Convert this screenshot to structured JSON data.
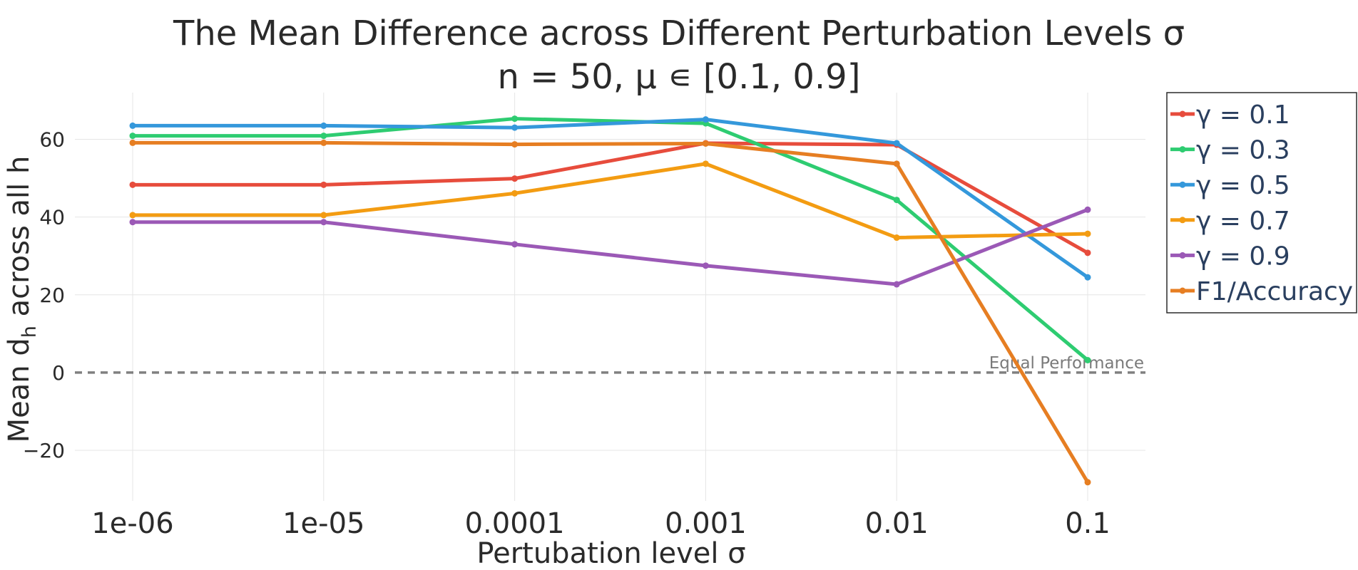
{
  "chart_data": {
    "type": "line",
    "title": "The Mean Difference across Different Perturbation Levels σ",
    "subtitle": "n = 50, μ ∊ [0.1, 0.9]",
    "xlabel": "Pertubation level σ",
    "ylabel_main": "Mean d",
    "ylabel_sub": "h",
    "ylabel_rest": " across all h",
    "categories": [
      "1e-06",
      "1e-05",
      "0.0001",
      "0.001",
      "0.01",
      "0.1"
    ],
    "ylim": [
      -33,
      72
    ],
    "yticks": [
      -20,
      0,
      20,
      40,
      60
    ],
    "ytick_labels": [
      "−20",
      "0",
      "20",
      "40",
      "60"
    ],
    "grid": true,
    "legend_position": "right",
    "reference_line": {
      "y": 0,
      "label": "Equal Performance",
      "color": "#808080"
    },
    "series": [
      {
        "name": "γ = 0.1",
        "color": "#e74c3c",
        "values": [
          48.3,
          48.3,
          49.9,
          59.0,
          58.6,
          30.8
        ]
      },
      {
        "name": "γ = 0.3",
        "color": "#2ecc71",
        "values": [
          60.9,
          60.9,
          65.3,
          64.1,
          44.4,
          3.2
        ]
      },
      {
        "name": "γ = 0.5",
        "color": "#3498db",
        "values": [
          63.5,
          63.5,
          63.0,
          65.1,
          59.0,
          24.5
        ]
      },
      {
        "name": "γ = 0.7",
        "color": "#f39c12",
        "values": [
          40.5,
          40.5,
          46.1,
          53.7,
          34.7,
          35.7
        ]
      },
      {
        "name": "γ = 0.9",
        "color": "#9b59b6",
        "values": [
          38.7,
          38.7,
          33.0,
          27.5,
          22.7,
          41.9
        ]
      },
      {
        "name": "F1/Accuracy",
        "color": "#e67e22",
        "values": [
          59.1,
          59.1,
          58.7,
          58.9,
          53.7,
          -28.2
        ]
      }
    ]
  }
}
